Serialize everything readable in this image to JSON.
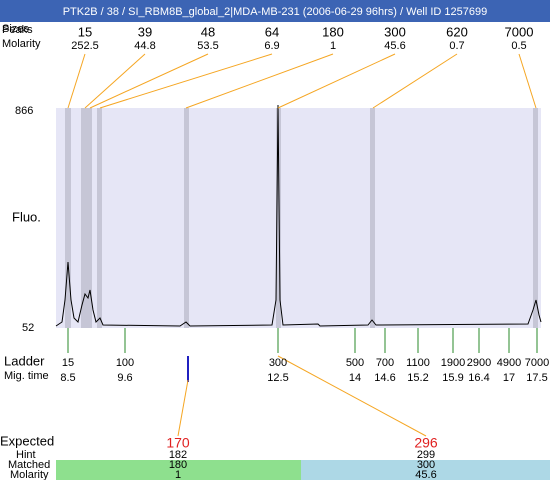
{
  "title": "PTK2B / 38 / SI_RBM8B_global_2|MDA-MB-231 (2006-06-29 96hrs) / Well ID 1257699",
  "row_labels": {
    "peaks": "Peaks",
    "sizes": "Sizes",
    "molarity": "Molarity",
    "fluo": "Fluo.",
    "ladder": "Ladder",
    "mig_time": "Mig. time",
    "expected": "Expected",
    "hint": "Hint",
    "matched": "Matched",
    "molarity2": "Molarity"
  },
  "peaks": {
    "sizes": [
      "15",
      "39",
      "48",
      "64",
      "180",
      "300",
      "620",
      "7000"
    ],
    "molarity": [
      "252.5",
      "44.8",
      "53.5",
      "6.9",
      "1",
      "45.6",
      "0.7",
      "0.5"
    ]
  },
  "y_axis": {
    "top": "866",
    "bottom": "52"
  },
  "ladder": {
    "sizes": [
      "15",
      "100",
      "300",
      "500",
      "700",
      "1100",
      "1900",
      "2900",
      "4900",
      "7000"
    ],
    "mig_times": [
      "8.5",
      "9.6",
      "12.5",
      "14",
      "14.6",
      "15.2",
      "15.9",
      "16.4",
      "17",
      "17.5"
    ]
  },
  "expected": {
    "values": [
      "170",
      "296"
    ],
    "hint": [
      "182",
      "299"
    ],
    "matched": [
      "180",
      "300"
    ],
    "molarity": [
      "1",
      "45.6"
    ]
  }
}
